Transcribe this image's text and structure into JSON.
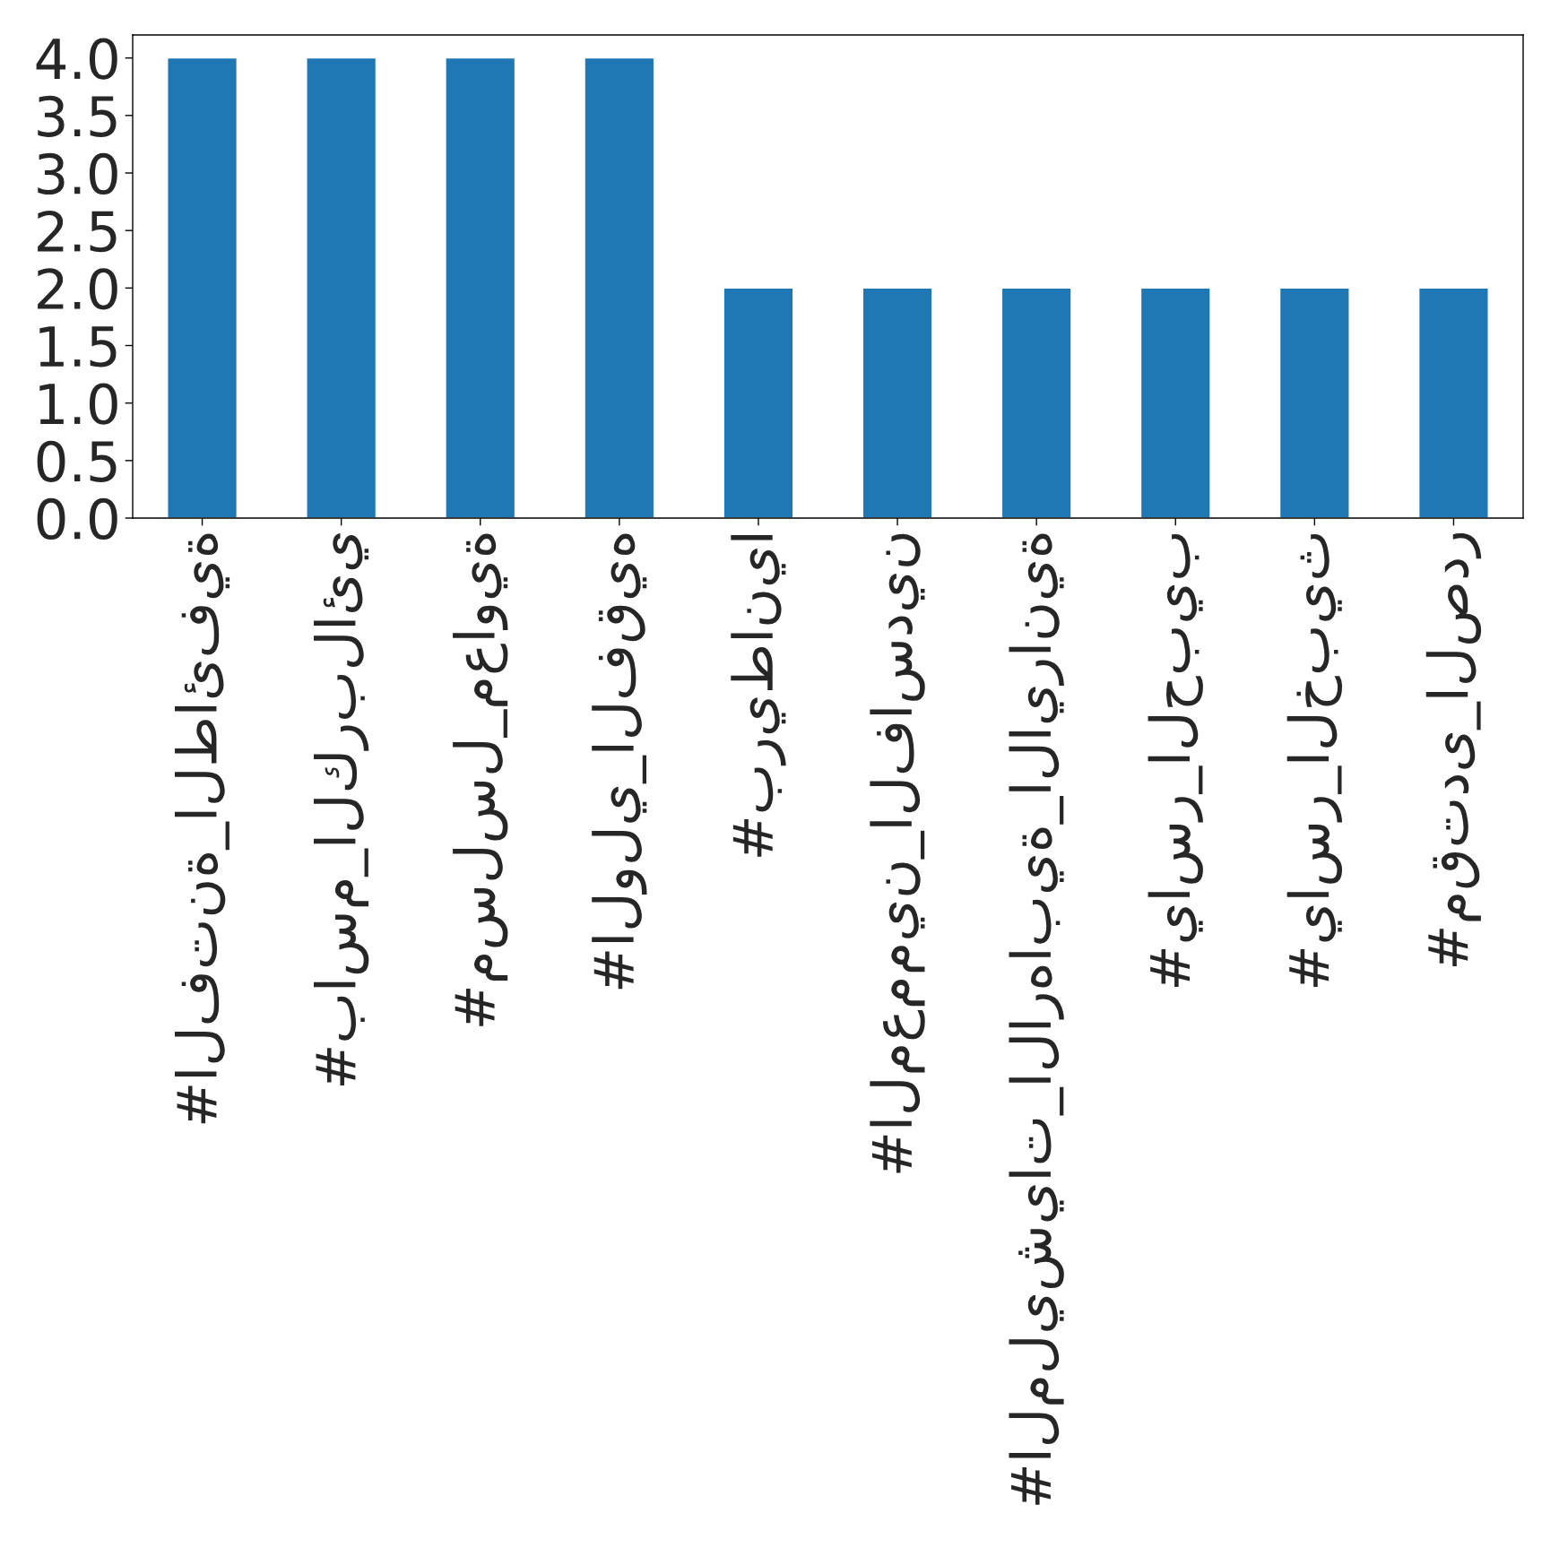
{
  "chart_data": {
    "type": "bar",
    "categories": [
      "#الفتنة_الطائفية",
      "#باسم_الكربلائي",
      "#مسلسل_معاوية",
      "#الولي_الفقيه",
      "#بريطانيا",
      "#المعممين_الفاسدين",
      "#المليشيات_الارهابية_الايرانية",
      "#ياسر_الحبيب",
      "#ياسر_الخبيث",
      "#مقتدى_الصدر"
    ],
    "values": [
      4,
      4,
      4,
      4,
      2,
      2,
      2,
      2,
      2,
      2
    ],
    "color": "#1f77b4",
    "ylim": [
      0,
      4.2
    ],
    "yticks": [
      {
        "value": 0,
        "label": "0.0"
      },
      {
        "value": 0.5,
        "label": "0.5"
      },
      {
        "value": 1,
        "label": "1.0"
      },
      {
        "value": 1.5,
        "label": "1.5"
      },
      {
        "value": 2,
        "label": "2.0"
      },
      {
        "value": 2.5,
        "label": "2.5"
      },
      {
        "value": 3,
        "label": "3.0"
      },
      {
        "value": 3.5,
        "label": "3.5"
      },
      {
        "value": 4,
        "label": "4.0"
      }
    ],
    "grid": false,
    "legend": false
  }
}
